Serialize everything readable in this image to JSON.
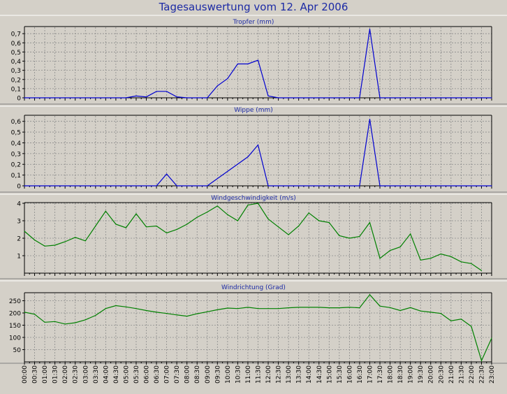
{
  "title": "Tagesauswertung vom 12. Apr 2006",
  "time_labels": [
    "00:00",
    "00:30",
    "01:00",
    "01:30",
    "02:00",
    "02:30",
    "03:00",
    "03:30",
    "04:00",
    "04:30",
    "05:00",
    "05:30",
    "06:00",
    "06:30",
    "07:00",
    "07:30",
    "08:00",
    "08:30",
    "09:00",
    "09:30",
    "10:00",
    "10:30",
    "11:00",
    "11:30",
    "12:00",
    "12:30",
    "13:00",
    "13:30",
    "14:00",
    "14:30",
    "15:00",
    "15:30",
    "16:00",
    "16:30",
    "17:00",
    "17:30",
    "18:00",
    "18:30",
    "19:00",
    "19:30",
    "20:00",
    "20:30",
    "21:00",
    "21:30",
    "22:00",
    "22:30",
    "23:00"
  ],
  "colors": {
    "blue": "#0000d0",
    "green": "#008000",
    "grid": "#8a8a8a",
    "background": "#d4d0c8"
  },
  "chart_data": [
    {
      "type": "line",
      "title": "Tropfer (mm)",
      "color": "blue",
      "ylim": [
        0,
        0.77
      ],
      "yticks": [
        0,
        0.1,
        0.2,
        0.3,
        0.4,
        0.5,
        0.6,
        0.7
      ],
      "ytick_labels": [
        "0",
        "0,1",
        "0,2",
        "0,3",
        "0,4",
        "0,5",
        "0,6",
        "0,7"
      ],
      "points": [
        [
          0,
          0
        ],
        [
          10,
          0
        ],
        [
          11,
          0.02
        ],
        [
          12,
          0.01
        ],
        [
          13,
          0.07
        ],
        [
          14,
          0.07
        ],
        [
          15,
          0.01
        ],
        [
          16,
          0
        ],
        [
          17,
          0
        ],
        [
          18,
          0
        ],
        [
          19,
          0.13
        ],
        [
          20,
          0.21
        ],
        [
          21,
          0.37
        ],
        [
          22,
          0.37
        ],
        [
          23,
          0.41
        ],
        [
          24,
          0.02
        ],
        [
          25,
          0
        ],
        [
          26,
          0
        ],
        [
          27,
          0
        ],
        [
          28,
          0
        ],
        [
          29,
          0
        ],
        [
          30,
          0
        ],
        [
          31,
          0
        ],
        [
          32,
          0
        ],
        [
          33,
          0
        ],
        [
          34,
          0.75
        ],
        [
          35,
          0
        ],
        [
          46,
          0
        ]
      ]
    },
    {
      "type": "line",
      "title": "Wippe (mm)",
      "color": "blue",
      "ylim": [
        0,
        0.65
      ],
      "yticks": [
        0,
        0.1,
        0.2,
        0.3,
        0.4,
        0.5,
        0.6
      ],
      "ytick_labels": [
        "0",
        "0,1",
        "0,2",
        "0,3",
        "0,4",
        "0,5",
        "0,6"
      ],
      "points": [
        [
          0,
          0
        ],
        [
          13,
          0
        ],
        [
          14,
          0.11
        ],
        [
          15,
          0
        ],
        [
          18,
          0
        ],
        [
          22,
          0.27
        ],
        [
          23,
          0.38
        ],
        [
          24,
          0
        ],
        [
          33,
          0
        ],
        [
          34,
          0.62
        ],
        [
          35,
          0
        ],
        [
          46,
          0
        ]
      ]
    },
    {
      "type": "line",
      "title": "Windgeschwindigkeit (m/s)",
      "color": "green",
      "ylim": [
        0,
        4
      ],
      "yticks": [
        1,
        2,
        3,
        4
      ],
      "ytick_labels": [
        "1",
        "2",
        "3",
        "4"
      ],
      "points": [
        [
          0,
          2.4
        ],
        [
          1,
          1.9
        ],
        [
          2,
          1.55
        ],
        [
          3,
          1.6
        ],
        [
          4,
          1.8
        ],
        [
          5,
          2.05
        ],
        [
          6,
          1.85
        ],
        [
          7,
          2.7
        ],
        [
          8,
          3.55
        ],
        [
          9,
          2.8
        ],
        [
          10,
          2.6
        ],
        [
          11,
          3.4
        ],
        [
          12,
          2.65
        ],
        [
          13,
          2.7
        ],
        [
          14,
          2.3
        ],
        [
          15,
          2.5
        ],
        [
          16,
          2.8
        ],
        [
          17,
          3.2
        ],
        [
          18,
          3.5
        ],
        [
          19,
          3.85
        ],
        [
          20,
          3.35
        ],
        [
          21,
          3.0
        ],
        [
          22,
          3.9
        ],
        [
          23,
          4.0
        ],
        [
          24,
          3.1
        ],
        [
          25,
          2.65
        ],
        [
          26,
          2.2
        ],
        [
          27,
          2.7
        ],
        [
          28,
          3.45
        ],
        [
          29,
          3.0
        ],
        [
          30,
          2.9
        ],
        [
          31,
          2.15
        ],
        [
          32,
          2.0
        ],
        [
          33,
          2.1
        ],
        [
          34,
          2.9
        ],
        [
          35,
          0.85
        ],
        [
          36,
          1.3
        ],
        [
          37,
          1.5
        ],
        [
          38,
          2.25
        ],
        [
          39,
          0.75
        ],
        [
          40,
          0.85
        ],
        [
          41,
          1.1
        ],
        [
          42,
          0.95
        ],
        [
          43,
          0.65
        ],
        [
          44,
          0.55
        ],
        [
          45,
          0.15
        ]
      ]
    },
    {
      "type": "line",
      "title": "Windrichtung (Grad)",
      "color": "green",
      "ylim": [
        0,
        280
      ],
      "yticks": [
        50,
        100,
        150,
        200,
        250
      ],
      "ytick_labels": [
        "50",
        "100",
        "150",
        "200",
        "250"
      ],
      "points": [
        [
          0,
          203
        ],
        [
          1,
          195
        ],
        [
          2,
          162
        ],
        [
          3,
          165
        ],
        [
          4,
          155
        ],
        [
          5,
          160
        ],
        [
          6,
          172
        ],
        [
          7,
          190
        ],
        [
          8,
          218
        ],
        [
          9,
          230
        ],
        [
          10,
          225
        ],
        [
          11,
          218
        ],
        [
          12,
          210
        ],
        [
          13,
          203
        ],
        [
          14,
          198
        ],
        [
          15,
          192
        ],
        [
          16,
          187
        ],
        [
          17,
          197
        ],
        [
          18,
          205
        ],
        [
          19,
          213
        ],
        [
          20,
          220
        ],
        [
          21,
          218
        ],
        [
          22,
          223
        ],
        [
          23,
          218
        ],
        [
          24,
          218
        ],
        [
          25,
          218
        ],
        [
          26,
          221
        ],
        [
          27,
          223
        ],
        [
          28,
          223
        ],
        [
          29,
          223
        ],
        [
          30,
          221
        ],
        [
          31,
          221
        ],
        [
          32,
          223
        ],
        [
          33,
          221
        ],
        [
          34,
          275
        ],
        [
          35,
          228
        ],
        [
          36,
          222
        ],
        [
          37,
          210
        ],
        [
          38,
          222
        ],
        [
          39,
          208
        ],
        [
          40,
          203
        ],
        [
          41,
          198
        ],
        [
          42,
          168
        ],
        [
          43,
          175
        ],
        [
          44,
          145
        ],
        [
          45,
          5
        ],
        [
          46,
          97
        ]
      ]
    }
  ]
}
